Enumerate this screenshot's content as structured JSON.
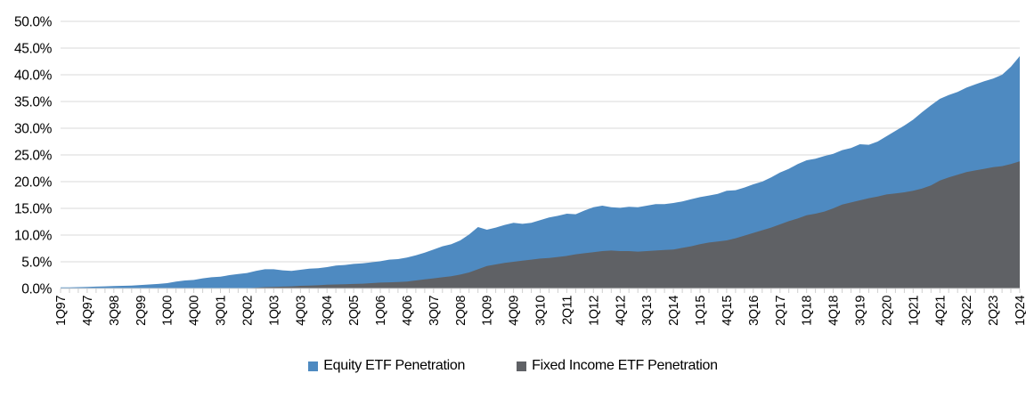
{
  "chart_data": {
    "type": "area",
    "title": "",
    "categories": [
      "1Q97",
      "2Q97",
      "3Q97",
      "4Q97",
      "1Q98",
      "2Q98",
      "3Q98",
      "4Q98",
      "1Q99",
      "2Q99",
      "3Q99",
      "4Q99",
      "1Q00",
      "2Q00",
      "3Q00",
      "4Q00",
      "1Q01",
      "2Q01",
      "3Q01",
      "4Q01",
      "1Q02",
      "2Q02",
      "3Q02",
      "4Q02",
      "1Q03",
      "2Q03",
      "3Q03",
      "4Q03",
      "1Q04",
      "2Q04",
      "3Q04",
      "4Q04",
      "1Q05",
      "2Q05",
      "3Q05",
      "4Q05",
      "1Q06",
      "2Q06",
      "3Q06",
      "4Q06",
      "1Q07",
      "2Q07",
      "3Q07",
      "4Q07",
      "1Q08",
      "2Q08",
      "3Q08",
      "4Q08",
      "1Q09",
      "2Q09",
      "3Q09",
      "4Q09",
      "1Q10",
      "2Q10",
      "3Q10",
      "4Q10",
      "1Q11",
      "2Q11",
      "3Q11",
      "4Q11",
      "1Q12",
      "2Q12",
      "3Q12",
      "4Q12",
      "1Q13",
      "2Q13",
      "3Q13",
      "4Q13",
      "1Q14",
      "2Q14",
      "3Q14",
      "4Q14",
      "1Q15",
      "2Q15",
      "3Q15",
      "4Q15",
      "1Q16",
      "2Q16",
      "3Q16",
      "4Q16",
      "1Q17",
      "2Q17",
      "3Q17",
      "4Q17",
      "1Q18",
      "2Q18",
      "3Q18",
      "4Q18",
      "1Q19",
      "2Q19",
      "3Q19",
      "4Q19",
      "1Q20",
      "2Q20",
      "3Q20",
      "4Q20",
      "1Q21",
      "2Q21",
      "3Q21",
      "4Q21",
      "1Q22",
      "2Q22",
      "3Q22",
      "4Q22",
      "1Q23",
      "2Q23",
      "3Q23",
      "4Q23",
      "1Q24"
    ],
    "series": [
      {
        "name": "Equity ETF Penetration",
        "color": "#4E8AC1",
        "values": [
          0.2,
          0.22,
          0.25,
          0.3,
          0.35,
          0.4,
          0.45,
          0.5,
          0.55,
          0.65,
          0.75,
          0.85,
          1.0,
          1.3,
          1.5,
          1.6,
          1.9,
          2.1,
          2.2,
          2.5,
          2.7,
          2.9,
          3.3,
          3.6,
          3.6,
          3.4,
          3.3,
          3.5,
          3.7,
          3.8,
          4.0,
          4.3,
          4.4,
          4.6,
          4.7,
          4.9,
          5.1,
          5.4,
          5.5,
          5.8,
          6.2,
          6.7,
          7.3,
          7.9,
          8.3,
          9.0,
          10.1,
          11.5,
          11.0,
          11.4,
          11.9,
          12.3,
          12.1,
          12.3,
          12.8,
          13.3,
          13.6,
          14.0,
          13.9,
          14.6,
          15.2,
          15.5,
          15.2,
          15.1,
          15.3,
          15.2,
          15.5,
          15.8,
          15.8,
          16.0,
          16.3,
          16.7,
          17.1,
          17.4,
          17.7,
          18.3,
          18.4,
          18.9,
          19.5,
          20.0,
          20.8,
          21.7,
          22.4,
          23.3,
          24.0,
          24.3,
          24.8,
          25.2,
          25.9,
          26.3,
          27.0,
          26.9,
          27.5,
          28.5,
          29.5,
          30.5,
          31.6,
          33.0,
          34.3,
          35.5,
          36.2,
          36.8,
          37.6,
          38.2,
          38.8,
          39.3,
          40.0,
          41.5,
          43.5
        ]
      },
      {
        "name": "Fixed Income ETF Penetration",
        "color": "#5F6165",
        "values": [
          0,
          0,
          0,
          0,
          0,
          0,
          0,
          0,
          0,
          0,
          0,
          0,
          0,
          0,
          0,
          0,
          0,
          0,
          0,
          0,
          0.0,
          0.05,
          0.15,
          0.25,
          0.3,
          0.35,
          0.4,
          0.5,
          0.55,
          0.6,
          0.7,
          0.75,
          0.8,
          0.85,
          0.9,
          1.0,
          1.1,
          1.15,
          1.2,
          1.3,
          1.5,
          1.7,
          1.9,
          2.1,
          2.3,
          2.6,
          3.0,
          3.6,
          4.2,
          4.5,
          4.8,
          5.0,
          5.2,
          5.4,
          5.6,
          5.7,
          5.9,
          6.1,
          6.4,
          6.6,
          6.8,
          7.0,
          7.1,
          7.0,
          7.0,
          6.9,
          7.0,
          7.1,
          7.2,
          7.3,
          7.6,
          7.9,
          8.3,
          8.6,
          8.8,
          9.0,
          9.4,
          9.9,
          10.4,
          10.9,
          11.4,
          12.0,
          12.6,
          13.1,
          13.7,
          14.0,
          14.4,
          15.0,
          15.7,
          16.1,
          16.5,
          16.9,
          17.2,
          17.6,
          17.8,
          18.0,
          18.3,
          18.7,
          19.3,
          20.2,
          20.8,
          21.3,
          21.8,
          22.1,
          22.4,
          22.7,
          22.9,
          23.3,
          23.8
        ]
      }
    ],
    "overlap": true,
    "ylim": [
      0,
      50
    ],
    "ytick_step": 5,
    "ytick_labels": [
      "0.0%",
      "5.0%",
      "10.0%",
      "15.0%",
      "20.0%",
      "25.0%",
      "30.0%",
      "35.0%",
      "40.0%",
      "45.0%",
      "50.0%"
    ],
    "xtick_label_every": 3,
    "grid": "horizontal",
    "gridline_color": "#d9d9d9",
    "tick_color": "#cfcfcf",
    "legend_position": "bottom"
  }
}
